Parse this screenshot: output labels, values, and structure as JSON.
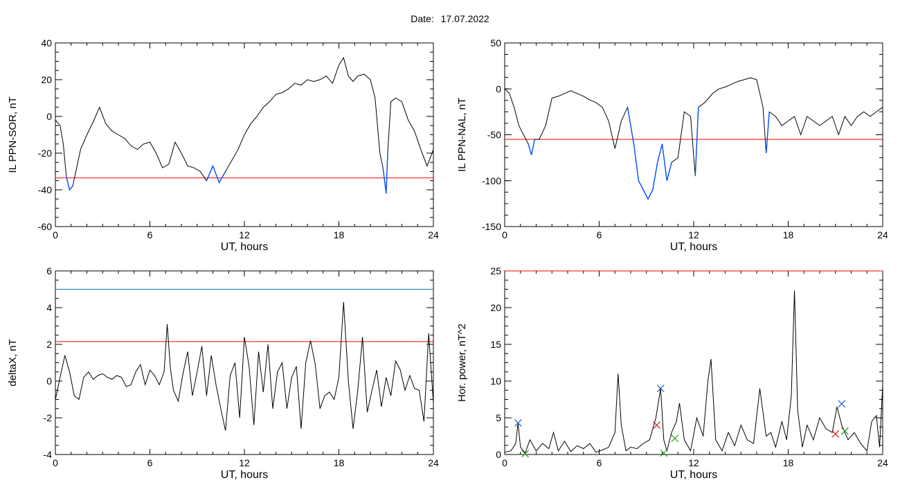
{
  "header": {
    "date_label": "Date:",
    "date_value": "17.07.2022"
  },
  "colors": {
    "threshold_red": "#ff0000",
    "threshold_cyan": "#0080a0",
    "dip_blue": "#0050ff",
    "line": "#000000",
    "marker_blue": "#2060d0",
    "marker_red": "#d02020",
    "marker_green": "#20a020"
  },
  "chart_data": [
    {
      "id": "il-ppn-sor",
      "type": "line",
      "xlabel": "UT, hours",
      "ylabel": "IL PPN-SOR, nT",
      "xlim": [
        0,
        24
      ],
      "ylim": [
        -60,
        40
      ],
      "xticks": [
        0,
        6,
        12,
        18,
        24
      ],
      "yticks": [
        -60,
        -40,
        -20,
        0,
        20,
        40
      ],
      "threshold": {
        "value": -33.5,
        "color": "#ff0000"
      },
      "x": [
        0,
        0.3,
        0.5,
        0.7,
        0.9,
        1.1,
        1.3,
        1.6,
        2.0,
        2.4,
        2.8,
        3.2,
        3.6,
        4.0,
        4.4,
        4.8,
        5.2,
        5.6,
        6.0,
        6.4,
        6.8,
        7.2,
        7.6,
        8.0,
        8.4,
        8.8,
        9.2,
        9.6,
        10.0,
        10.4,
        10.8,
        11.2,
        11.6,
        12.0,
        12.4,
        12.8,
        13.2,
        13.6,
        14.0,
        14.4,
        14.8,
        15.2,
        15.6,
        16.0,
        16.4,
        16.8,
        17.2,
        17.6,
        18.0,
        18.3,
        18.6,
        18.9,
        19.2,
        19.6,
        20.0,
        20.3,
        20.6,
        20.8,
        21.0,
        21.1,
        21.3,
        21.6,
        22.0,
        22.4,
        22.8,
        23.2,
        23.6,
        24.0
      ],
      "y": [
        -2,
        -5,
        -15,
        -33,
        -40,
        -38,
        -30,
        -18,
        -10,
        -3,
        5,
        -4,
        -8,
        -10,
        -12,
        -16,
        -18,
        -15,
        -14,
        -20,
        -28,
        -26,
        -14,
        -20,
        -27,
        -28,
        -30,
        -35,
        -27,
        -36,
        -30,
        -24,
        -18,
        -10,
        -4,
        0,
        5,
        8,
        12,
        13,
        15,
        18,
        17,
        20,
        19,
        20,
        22,
        18,
        28,
        32,
        22,
        19,
        22,
        23,
        20,
        10,
        -20,
        -28,
        -42,
        -20,
        8,
        10,
        8,
        -2,
        -8,
        -18,
        -27,
        -18
      ],
      "dips": [
        [
          0.6,
          1.2
        ],
        [
          9.5,
          10.9
        ],
        [
          20.8,
          21.2
        ]
      ]
    },
    {
      "id": "il-ppn-nal",
      "type": "line",
      "xlabel": "UT, hours",
      "ylabel": "IL PPN-NAL, nT",
      "xlim": [
        0,
        24
      ],
      "ylim": [
        -150,
        50
      ],
      "xticks": [
        0,
        6,
        12,
        18,
        24
      ],
      "yticks": [
        -150,
        -100,
        -50,
        0,
        50
      ],
      "threshold": {
        "value": -55,
        "color": "#ff0000"
      },
      "x": [
        0,
        0.3,
        0.6,
        0.9,
        1.2,
        1.5,
        1.7,
        1.9,
        2.2,
        2.6,
        3.0,
        3.4,
        3.8,
        4.2,
        4.6,
        5.0,
        5.4,
        5.8,
        6.2,
        6.6,
        7.0,
        7.4,
        7.8,
        8.2,
        8.5,
        8.8,
        9.1,
        9.4,
        9.7,
        10.0,
        10.3,
        10.6,
        11.0,
        11.4,
        11.8,
        12.1,
        12.3,
        12.7,
        13.2,
        13.6,
        14.0,
        14.4,
        14.8,
        15.2,
        15.6,
        16.0,
        16.4,
        16.6,
        16.8,
        17.2,
        17.6,
        18.0,
        18.4,
        18.8,
        19.2,
        19.6,
        20.0,
        20.4,
        20.8,
        21.2,
        21.6,
        22.0,
        22.4,
        22.8,
        23.2,
        23.6,
        24.0
      ],
      "y": [
        0,
        -5,
        -20,
        -40,
        -50,
        -60,
        -72,
        -55,
        -55,
        -40,
        -10,
        -8,
        -5,
        -2,
        -5,
        -8,
        -12,
        -15,
        -20,
        -35,
        -65,
        -35,
        -20,
        -60,
        -100,
        -110,
        -120,
        -110,
        -80,
        -60,
        -100,
        -80,
        -75,
        -25,
        -30,
        -95,
        -20,
        -15,
        -5,
        0,
        2,
        5,
        8,
        10,
        12,
        10,
        -20,
        -70,
        -25,
        -30,
        -40,
        -35,
        -30,
        -50,
        -30,
        -35,
        -40,
        -35,
        -30,
        -50,
        -30,
        -40,
        -30,
        -25,
        -30,
        -25,
        -20
      ],
      "dips": [
        [
          1.5,
          2.1
        ],
        [
          6.5,
          6.9
        ],
        [
          7.8,
          10.7
        ],
        [
          12.0,
          12.3
        ],
        [
          16.5,
          16.8
        ]
      ]
    },
    {
      "id": "delta-x",
      "type": "line",
      "xlabel": "UT, hours",
      "ylabel": "deltaX, nT",
      "xlim": [
        0,
        24
      ],
      "ylim": [
        -4,
        6
      ],
      "xticks": [
        0,
        6,
        12,
        18,
        24
      ],
      "yticks": [
        -4,
        -2,
        0,
        2,
        4,
        6
      ],
      "thresholds": [
        {
          "value": 5.0,
          "color": "#0080a0"
        },
        {
          "value": 2.15,
          "color": "#ff0000"
        }
      ],
      "x": [
        0,
        0.3,
        0.6,
        0.9,
        1.2,
        1.5,
        1.8,
        2.1,
        2.4,
        2.7,
        3.0,
        3.3,
        3.6,
        3.9,
        4.2,
        4.5,
        4.8,
        5.1,
        5.4,
        5.7,
        6.0,
        6.3,
        6.6,
        6.9,
        7.1,
        7.3,
        7.5,
        7.8,
        8.1,
        8.4,
        8.7,
        9.0,
        9.3,
        9.6,
        9.9,
        10.2,
        10.5,
        10.8,
        11.1,
        11.4,
        11.7,
        12.0,
        12.3,
        12.6,
        12.9,
        13.2,
        13.5,
        13.8,
        14.1,
        14.4,
        14.7,
        15.0,
        15.3,
        15.6,
        15.9,
        16.2,
        16.5,
        16.8,
        17.1,
        17.4,
        17.7,
        18.0,
        18.3,
        18.6,
        18.9,
        19.2,
        19.5,
        19.8,
        20.1,
        20.4,
        20.7,
        21.0,
        21.3,
        21.6,
        21.9,
        22.2,
        22.5,
        22.8,
        23.1,
        23.4,
        23.7,
        24.0
      ],
      "y": [
        -1,
        0.2,
        1.4,
        0.5,
        -0.8,
        -1,
        0.2,
        0.5,
        0.1,
        0.3,
        0.4,
        0.2,
        0.1,
        0.3,
        0.2,
        -0.3,
        -0.2,
        0.5,
        0.9,
        -0.2,
        0.6,
        0.3,
        -0.2,
        0.5,
        3.1,
        0.7,
        -0.5,
        -1.1,
        0.4,
        1.6,
        -0.8,
        0.5,
        1.9,
        -0.8,
        1.4,
        -0.2,
        -1.5,
        -2.7,
        0.3,
        1.0,
        -2.0,
        2.4,
        0.8,
        -2.4,
        1.6,
        -0.6,
        2.0,
        -1.5,
        0.5,
        1.0,
        -1.5,
        0.2,
        0.8,
        -2.6,
        1.0,
        2.2,
        0.9,
        -1.5,
        -0.8,
        -0.6,
        -1.0,
        0.2,
        4.3,
        0.0,
        -2.6,
        -0.5,
        2.4,
        -1.7,
        -0.5,
        0.6,
        -1.4,
        0.2,
        -0.8,
        1.1,
        0.6,
        -0.5,
        0.3,
        -0.4,
        -0.5,
        -2.2,
        2.6,
        -1.2
      ]
    },
    {
      "id": "hor-power",
      "type": "line",
      "xlabel": "UT, hours",
      "ylabel": "Hor. power, nT^2",
      "xlim": [
        0,
        24
      ],
      "ylim": [
        0,
        25
      ],
      "xticks": [
        0,
        6,
        12,
        18,
        24
      ],
      "yticks": [
        0,
        5,
        10,
        15,
        20,
        25
      ],
      "threshold": {
        "value": 25,
        "color": "#ff0000"
      },
      "x": [
        0,
        0.4,
        0.7,
        0.85,
        1.0,
        1.3,
        1.6,
        2.0,
        2.4,
        2.8,
        3.1,
        3.4,
        3.8,
        4.2,
        4.6,
        5.0,
        5.4,
        5.8,
        6.2,
        6.6,
        7.0,
        7.2,
        7.4,
        7.7,
        8.0,
        8.4,
        8.8,
        9.2,
        9.6,
        9.9,
        10.1,
        10.3,
        10.6,
        10.9,
        11.1,
        11.4,
        11.8,
        12.2,
        12.6,
        12.9,
        13.1,
        13.4,
        13.8,
        14.2,
        14.6,
        15.0,
        15.4,
        15.8,
        16.2,
        16.6,
        16.9,
        17.2,
        17.6,
        17.9,
        18.2,
        18.4,
        18.6,
        18.9,
        19.2,
        19.6,
        20.0,
        20.4,
        20.8,
        21.1,
        21.4,
        21.8,
        22.2,
        22.6,
        23.0,
        23.3,
        23.6,
        23.8,
        24.0
      ],
      "y": [
        0.3,
        0.5,
        1.5,
        4.3,
        1.0,
        0.2,
        2.0,
        0.5,
        1.5,
        0.8,
        3.0,
        0.5,
        1.8,
        0.4,
        1.2,
        0.8,
        1.5,
        0.3,
        0.6,
        1.0,
        3.0,
        11.0,
        4.0,
        0.5,
        1.0,
        0.8,
        1.5,
        2.0,
        5.0,
        9.0,
        2.0,
        0.5,
        3.0,
        4.5,
        7.0,
        2.0,
        0.5,
        5.0,
        2.5,
        10.0,
        13.0,
        2.0,
        0.5,
        3.0,
        1.2,
        4.0,
        2.0,
        1.5,
        9.0,
        2.5,
        3.0,
        1.0,
        4.5,
        2.0,
        8.0,
        22.3,
        6.0,
        1.0,
        4.0,
        2.0,
        5.0,
        3.5,
        3.0,
        6.5,
        4.0,
        2.0,
        3.0,
        1.5,
        0.5,
        4.5,
        5.3,
        1.0,
        9.5
      ],
      "markers": [
        {
          "x": 0.85,
          "y": 4.3,
          "color": "#2060d0"
        },
        {
          "x": 9.9,
          "y": 9.0,
          "color": "#2060d0"
        },
        {
          "x": 21.4,
          "y": 6.9,
          "color": "#2060d0"
        },
        {
          "x": 9.65,
          "y": 4.0,
          "color": "#d02020"
        },
        {
          "x": 21.0,
          "y": 2.8,
          "color": "#d02020"
        },
        {
          "x": 10.8,
          "y": 2.2,
          "color": "#20a020"
        },
        {
          "x": 10.1,
          "y": 0.2,
          "color": "#20a020"
        },
        {
          "x": 21.6,
          "y": 3.2,
          "color": "#20a020"
        },
        {
          "x": 1.3,
          "y": 0.1,
          "color": "#20a020"
        }
      ]
    }
  ]
}
